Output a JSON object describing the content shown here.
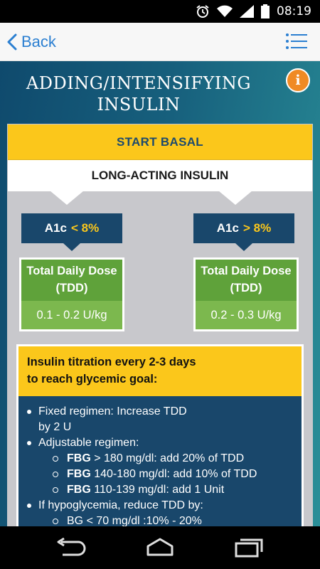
{
  "status_bar": {
    "time": "08:19",
    "icons": [
      "alarm-icon",
      "wifi-icon",
      "signal-icon",
      "battery-icon"
    ]
  },
  "header": {
    "back_label": "Back",
    "menu_icon": "menu-list-icon"
  },
  "page": {
    "title_line1": "ADDING/INTENSIFYING",
    "title_line2": "INSULIN",
    "info_label": "i"
  },
  "card": {
    "banner": "START BASAL",
    "subtitle": "LONG-ACTING INSULIN",
    "branches": [
      {
        "a1c_label": "A1c",
        "a1c_value": "< 8%",
        "tdd_line1": "Total Daily Dose",
        "tdd_line2": "(TDD)",
        "dose": "0.1 - 0.2 U/kg"
      },
      {
        "a1c_label": "A1c",
        "a1c_value": "> 8%",
        "tdd_line1": "Total Daily Dose",
        "tdd_line2": "(TDD)",
        "dose": "0.2 - 0.3 U/kg"
      }
    ],
    "titration": {
      "head_line1": "Insulin titration every 2-3 days",
      "head_line2": "to reach glycemic goal:",
      "items": [
        {
          "line1": "Fixed regimen: Increase TDD",
          "line2": "by 2 U"
        },
        {
          "line1": "Adjustable regimen:"
        },
        {
          "bold": "FBG",
          "rest": " > 180 mg/dl: add 20% of TDD"
        },
        {
          "bold": "FBG",
          "rest": " 140-180 mg/dl: add 10% of TDD"
        },
        {
          "bold": "FBG",
          "rest": " 110-139 mg/dl: add 1 Unit"
        },
        {
          "line1": "If hypoglycemia, reduce TDD by:"
        },
        {
          "line1": "BG < 70 mg/dl :10% - 20%"
        }
      ]
    }
  },
  "colors": {
    "accent_yellow": "#fbc71b",
    "navy": "#19476b",
    "green": "#5fa23a",
    "orange": "#f08a24",
    "link_blue": "#2b7fd1"
  }
}
